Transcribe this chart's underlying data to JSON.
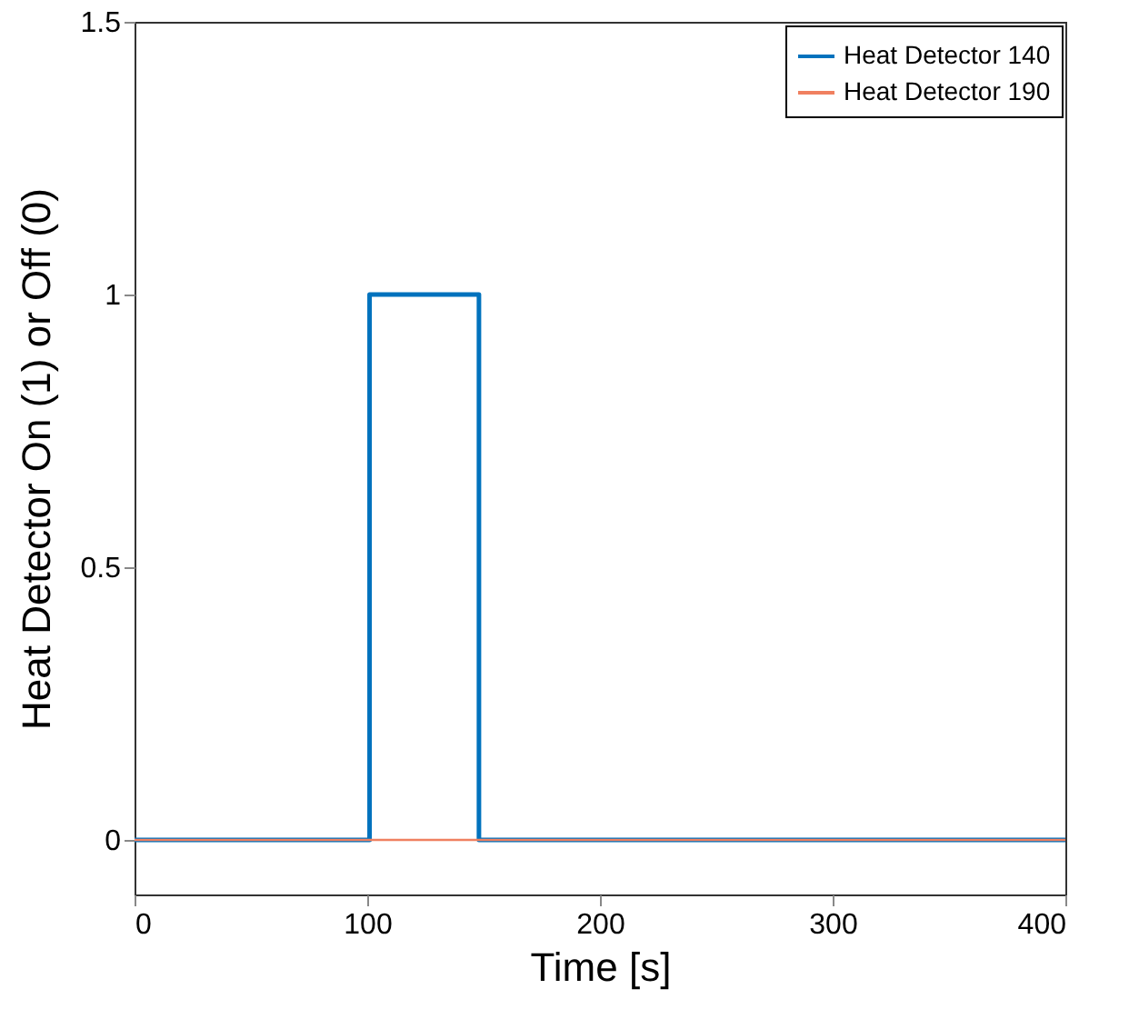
{
  "chart_data": {
    "type": "step",
    "xlabel": "Time [s]",
    "ylabel": "Heat Detector On (1) or Off (0)",
    "xlim": [
      0,
      400
    ],
    "xticks": [
      0,
      100,
      200,
      300,
      400
    ],
    "ylim": [
      -0.1,
      1.5
    ],
    "yticks": [
      0,
      0.5,
      1,
      1.5
    ],
    "legend": "top right",
    "grid": false,
    "line_style": "solid",
    "series": [
      {
        "name": "Heat Detector 140",
        "color": "#0072bd",
        "x": [
          0,
          101,
          148,
          400
        ],
        "values": [
          0,
          1,
          0,
          0
        ]
      },
      {
        "name": "Heat Detector 190",
        "color": "#f08060",
        "x": [
          0,
          400
        ],
        "values": [
          0,
          0
        ]
      }
    ]
  }
}
